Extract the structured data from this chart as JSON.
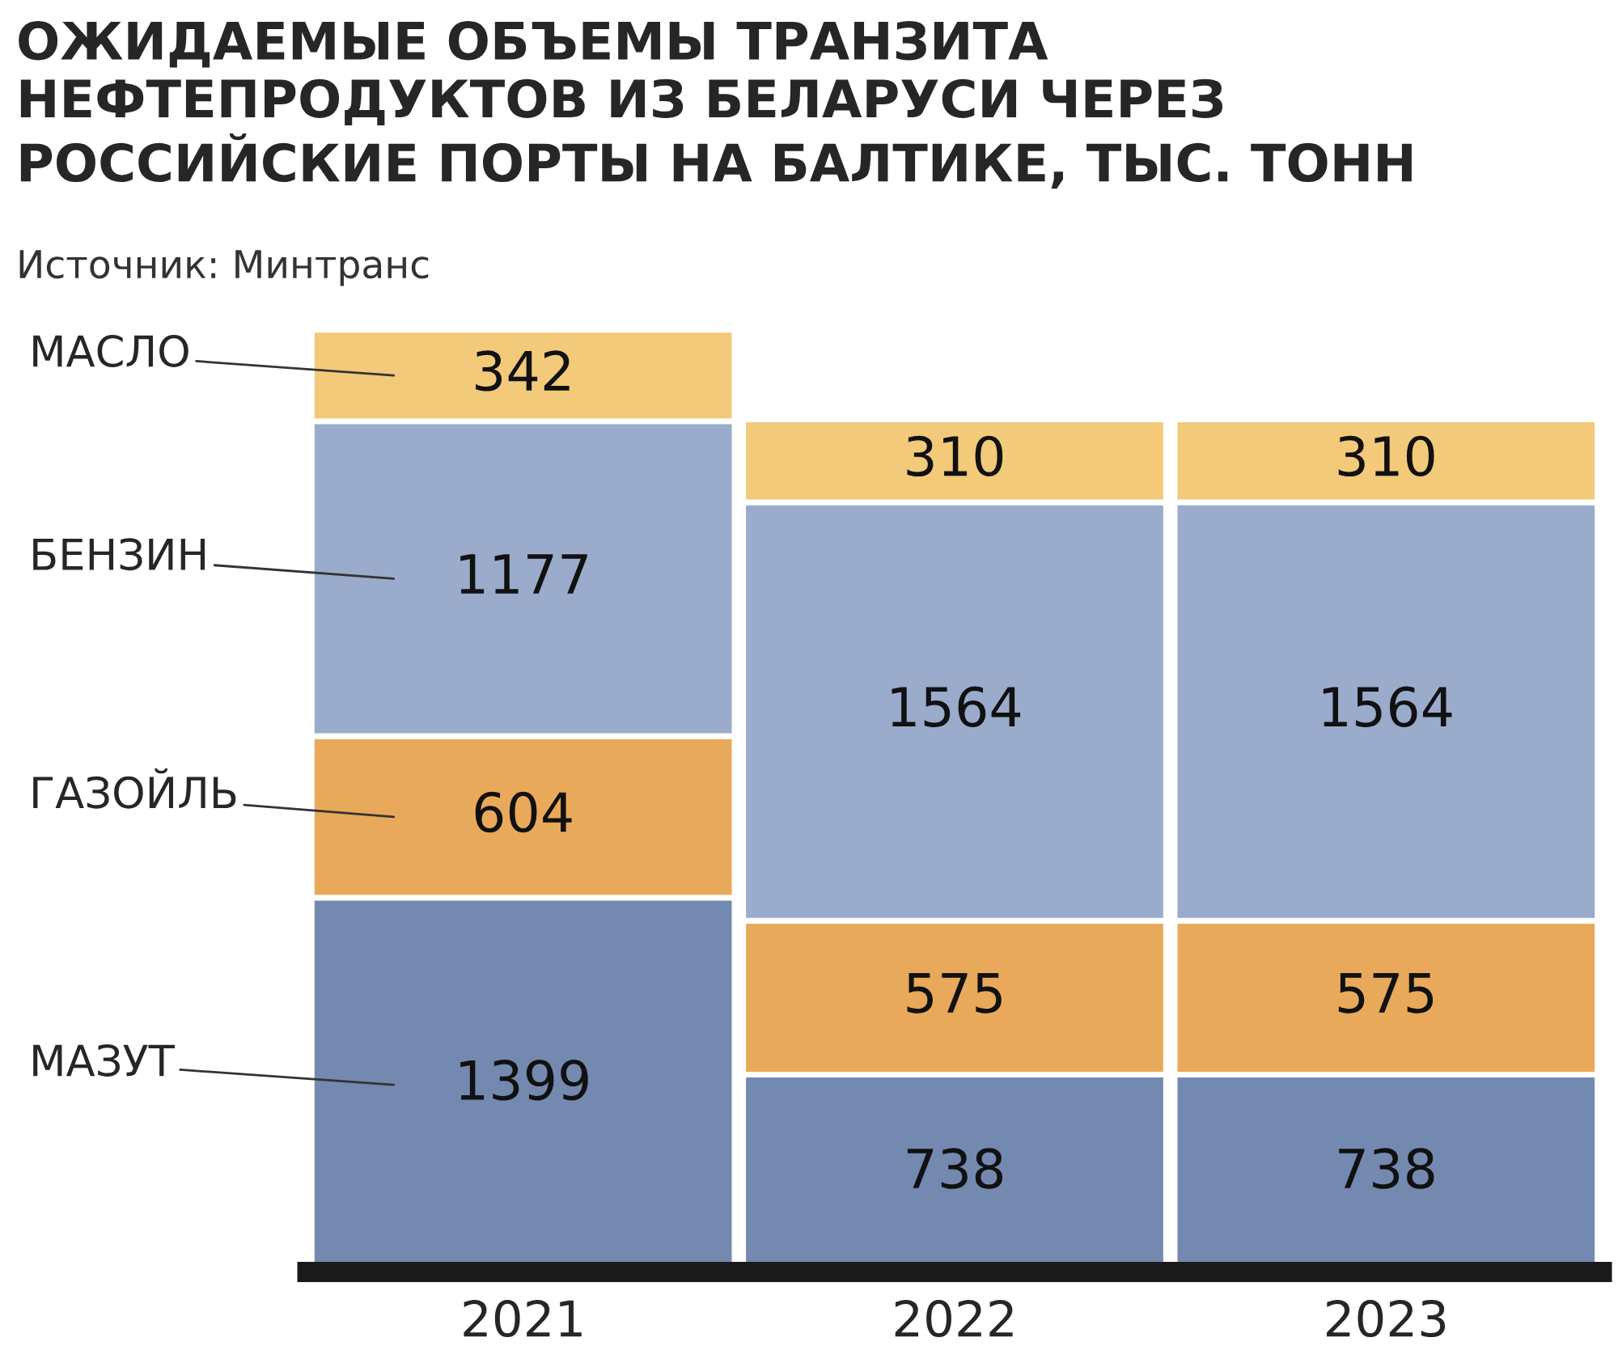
{
  "chart_data": {
    "type": "bar",
    "stacked": true,
    "data_labels": true,
    "title": "ОЖИДАЕМЫЕ ОБЪЕМЫ ТРАНЗИТА НЕФТЕПРОДУКТОВ ИЗ БЕЛАРУСИ ЧЕРЕЗ РОССИЙСКИЕ ПОРТЫ НА БАЛТИКЕ, ТЫС. ТОНН",
    "annotations": [
      "Источник: Минтранс"
    ],
    "categories": [
      "2021",
      "2022",
      "2023"
    ],
    "series": [
      {
        "name": "МАЗУТ",
        "color": "#7489b0",
        "values": [
          1399,
          738,
          738
        ]
      },
      {
        "name": "ГАЗОЙЛЬ",
        "color": "#e9a95a",
        "values": [
          604,
          575,
          575
        ]
      },
      {
        "name": "БЕНЗИН",
        "color": "#9aabcc",
        "values": [
          1177,
          1564,
          1564
        ]
      },
      {
        "name": "МАСЛО",
        "color": "#f3c97a",
        "values": [
          342,
          310,
          310
        ]
      }
    ]
  }
}
